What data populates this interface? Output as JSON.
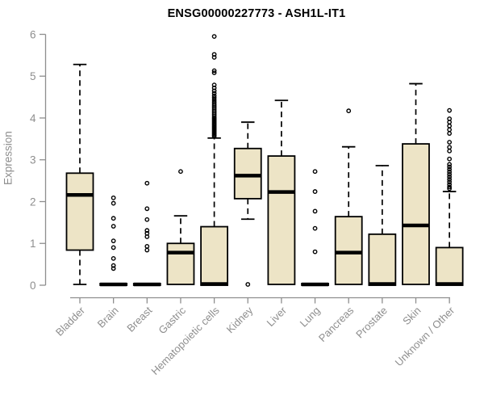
{
  "chart_data": {
    "type": "boxplot",
    "title": "ENSG00000227773 - ASH1L-IT1",
    "ylabel": "Expression",
    "xlabel": "",
    "ylim": [
      0,
      6
    ],
    "yticks": [
      0,
      1,
      2,
      3,
      4,
      5,
      6
    ],
    "grid": false,
    "legend": false,
    "box_fill": "#ede4c6",
    "box_stroke": "#000000",
    "axis_color": "#8e8e8e",
    "categories": [
      "Bladder",
      "Brain",
      "Breast",
      "Gastric",
      "Hematopoietic cells",
      "Kidney",
      "Liver",
      "Lung",
      "Pancreas",
      "Prostate",
      "Skin",
      "Unknown / Other"
    ],
    "series": [
      {
        "label": "Bladder",
        "low": 0.02,
        "q1": 0.84,
        "median": 2.16,
        "q3": 2.68,
        "high": 5.28,
        "outliers": []
      },
      {
        "label": "Brain",
        "low": 0,
        "q1": 0,
        "median": 0.02,
        "q3": 0.04,
        "high": 0.04,
        "outliers": [
          2.09,
          1.96,
          1.6,
          1.41,
          1.06,
          0.9,
          0.64,
          0.47,
          0.4
        ]
      },
      {
        "label": "Breast",
        "low": 0,
        "q1": 0,
        "median": 0.02,
        "q3": 0.04,
        "high": 0.04,
        "outliers": [
          2.44,
          1.83,
          1.57,
          1.31,
          1.24,
          1.16,
          0.93,
          0.84
        ]
      },
      {
        "label": "Gastric",
        "low": 0.02,
        "q1": 0.02,
        "median": 0.78,
        "q3": 1.0,
        "high": 1.66,
        "outliers": [
          2.72
        ]
      },
      {
        "label": "Hematopoietic cells",
        "low": 0,
        "q1": 0,
        "median": 0.03,
        "q3": 1.4,
        "high": 3.52,
        "outliers": [
          3.56,
          3.59,
          3.62,
          3.65,
          3.68,
          3.71,
          3.74,
          3.77,
          3.8,
          3.83,
          3.86,
          3.89,
          3.92,
          3.95,
          3.98,
          4.01,
          4.05,
          4.09,
          4.13,
          4.17,
          4.21,
          4.25,
          4.29,
          4.33,
          4.38,
          4.43,
          4.48,
          4.53,
          4.59,
          4.65,
          4.72,
          4.79,
          5.08,
          5.13,
          5.45,
          5.52,
          5.95
        ]
      },
      {
        "label": "Kidney",
        "low": 1.58,
        "q1": 2.07,
        "median": 2.62,
        "q3": 3.27,
        "high": 3.9,
        "outliers": [
          0.02
        ]
      },
      {
        "label": "Liver",
        "low": 0.02,
        "q1": 0.02,
        "median": 2.23,
        "q3": 3.09,
        "high": 4.42,
        "outliers": []
      },
      {
        "label": "Lung",
        "low": 0,
        "q1": 0,
        "median": 0.02,
        "q3": 0.04,
        "high": 0.04,
        "outliers": [
          2.72,
          2.24,
          1.77,
          1.36,
          0.8
        ]
      },
      {
        "label": "Pancreas",
        "low": 0.02,
        "q1": 0.02,
        "median": 0.78,
        "q3": 1.64,
        "high": 3.31,
        "outliers": [
          4.17
        ]
      },
      {
        "label": "Prostate",
        "low": 0,
        "q1": 0,
        "median": 0.03,
        "q3": 1.22,
        "high": 2.86,
        "outliers": []
      },
      {
        "label": "Skin",
        "low": 0.02,
        "q1": 0.02,
        "median": 1.43,
        "q3": 3.38,
        "high": 4.82,
        "outliers": []
      },
      {
        "label": "Unknown / Other",
        "low": 0,
        "q1": 0,
        "median": 0.03,
        "q3": 0.9,
        "high": 2.24,
        "outliers": [
          4.18,
          3.98,
          3.9,
          3.81,
          3.72,
          3.63,
          3.42,
          3.3,
          3.21,
          3.02,
          2.89,
          2.83,
          2.77,
          2.71,
          2.65,
          2.59,
          2.53,
          2.47,
          2.41,
          2.35,
          2.31
        ]
      }
    ]
  }
}
